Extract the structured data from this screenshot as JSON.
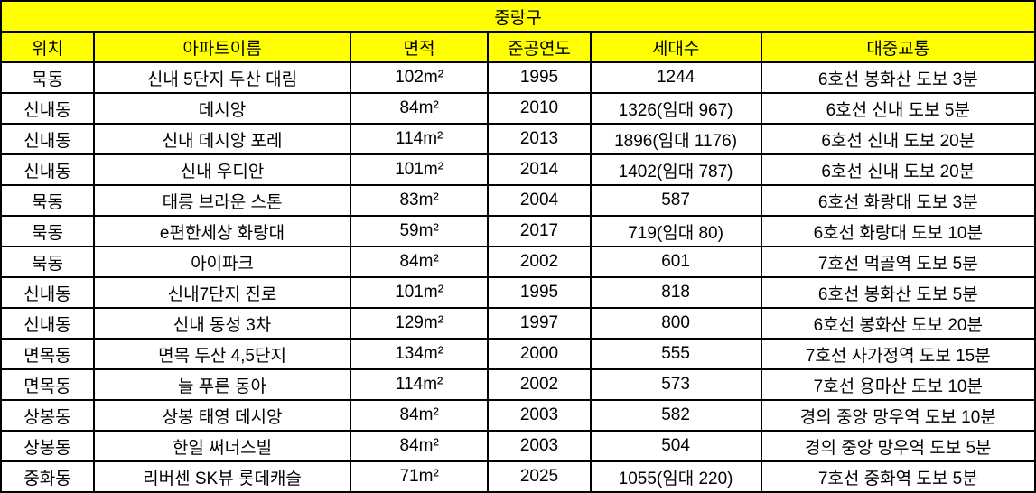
{
  "table": {
    "title": "중랑구",
    "columns": [
      "위치",
      "아파트이름",
      "면적",
      "준공연도",
      "세대수",
      "대중교통"
    ],
    "rows": [
      [
        "묵동",
        "신내 5단지 두산 대림",
        "102m²",
        "1995",
        "1244",
        "6호선 봉화산 도보 3분"
      ],
      [
        "신내동",
        "데시앙",
        "84m²",
        "2010",
        "1326(임대 967)",
        "6호선 신내 도보 5분"
      ],
      [
        "신내동",
        "신내 데시앙 포레",
        "114m²",
        "2013",
        "1896(임대 1176)",
        "6호선 신내 도보 20분"
      ],
      [
        "신내동",
        "신내 우디안",
        "101m²",
        "2014",
        "1402(임대 787)",
        "6호선 신내 도보 20분"
      ],
      [
        "묵동",
        "태릉 브라운 스톤",
        "83m²",
        "2004",
        "587",
        "6호선 화랑대 도보 3분"
      ],
      [
        "묵동",
        "e편한세상 화랑대",
        "59m²",
        "2017",
        "719(임대 80)",
        "6호선 화랑대 도보 10분"
      ],
      [
        "묵동",
        "아이파크",
        "84m²",
        "2002",
        "601",
        "7호선 먹골역 도보 5분"
      ],
      [
        "신내동",
        "신내7단지 진로",
        "101m²",
        "1995",
        "818",
        "6호선 봉화산 도보 5분"
      ],
      [
        "신내동",
        "신내 동성 3차",
        "129m²",
        "1997",
        "800",
        "6호선 봉화산 도보 20분"
      ],
      [
        "면목동",
        "면목 두산 4,5단지",
        "134m²",
        "2000",
        "555",
        "7호선 사가정역 도보 15분"
      ],
      [
        "면목동",
        "늘 푸른 동아",
        "114m²",
        "2002",
        "573",
        "7호선 용마산 도보 10분"
      ],
      [
        "상봉동",
        "상봉 태영 데시앙",
        "84m²",
        "2003",
        "582",
        "경의 중앙 망우역 도보 10분"
      ],
      [
        "상봉동",
        "한일 써너스빌",
        "84m²",
        "2003",
        "504",
        "경의 중앙 망우역 도보 5분"
      ],
      [
        "중화동",
        "리버센 SK뷰 롯데캐슬",
        "71m²",
        "2025",
        "1055(임대 220)",
        "7호선 중화역 도보 5분"
      ]
    ]
  },
  "colors": {
    "header_bg": "#ffff00",
    "border": "#000000",
    "text": "#000000"
  }
}
